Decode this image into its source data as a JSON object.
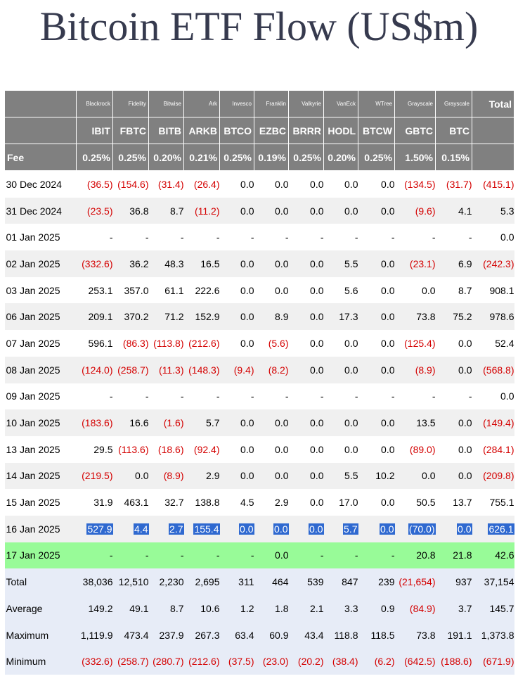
{
  "title": "Bitcoin ETF Flow (US$m)",
  "colors": {
    "header_bg": "#808080",
    "negative": "#d40000",
    "highlight": "#2f69d0",
    "green_row": "#98fb98",
    "summary_bg": "#e7ecf7"
  },
  "issuers": [
    "Blackrock",
    "Fidelity",
    "Bitwise",
    "Ark",
    "Invesco",
    "Franklin",
    "Valkyrie",
    "VanEck",
    "WTree",
    "Grayscale",
    "Grayscale"
  ],
  "total_header": "Total",
  "tickers": [
    "IBIT",
    "FBTC",
    "BITB",
    "ARKB",
    "BTCO",
    "EZBC",
    "BRRR",
    "HODL",
    "BTCW",
    "GBTC",
    "BTC"
  ],
  "fee_label": "Fee",
  "fees": [
    "0.25%",
    "0.25%",
    "0.20%",
    "0.21%",
    "0.25%",
    "0.19%",
    "0.25%",
    "0.20%",
    "0.25%",
    "1.50%",
    "0.15%"
  ],
  "rows": [
    {
      "date": "30 Dec 2024",
      "cells": [
        "(36.5)",
        "(154.6)",
        "(31.4)",
        "(26.4)",
        "0.0",
        "0.0",
        "0.0",
        "0.0",
        "0.0",
        "(134.5)",
        "(31.7)",
        "(415.1)"
      ]
    },
    {
      "date": "31 Dec 2024",
      "cells": [
        "(23.5)",
        "36.8",
        "8.7",
        "(11.2)",
        "0.0",
        "0.0",
        "0.0",
        "0.0",
        "0.0",
        "(9.6)",
        "4.1",
        "5.3"
      ]
    },
    {
      "date": "01 Jan 2025",
      "cells": [
        "-",
        "-",
        "-",
        "-",
        "-",
        "-",
        "-",
        "-",
        "-",
        "-",
        "-",
        "0.0"
      ]
    },
    {
      "date": "02 Jan 2025",
      "cells": [
        "(332.6)",
        "36.2",
        "48.3",
        "16.5",
        "0.0",
        "0.0",
        "0.0",
        "5.5",
        "0.0",
        "(23.1)",
        "6.9",
        "(242.3)"
      ]
    },
    {
      "date": "03 Jan 2025",
      "cells": [
        "253.1",
        "357.0",
        "61.1",
        "222.6",
        "0.0",
        "0.0",
        "0.0",
        "5.6",
        "0.0",
        "0.0",
        "8.7",
        "908.1"
      ]
    },
    {
      "date": "06 Jan 2025",
      "cells": [
        "209.1",
        "370.2",
        "71.2",
        "152.9",
        "0.0",
        "8.9",
        "0.0",
        "17.3",
        "0.0",
        "73.8",
        "75.2",
        "978.6"
      ]
    },
    {
      "date": "07 Jan 2025",
      "cells": [
        "596.1",
        "(86.3)",
        "(113.8)",
        "(212.6)",
        "0.0",
        "(5.6)",
        "0.0",
        "0.0",
        "0.0",
        "(125.4)",
        "0.0",
        "52.4"
      ]
    },
    {
      "date": "08 Jan 2025",
      "cells": [
        "(124.0)",
        "(258.7)",
        "(11.3)",
        "(148.3)",
        "(9.4)",
        "(8.2)",
        "0.0",
        "0.0",
        "0.0",
        "(8.9)",
        "0.0",
        "(568.8)"
      ]
    },
    {
      "date": "09 Jan 2025",
      "cells": [
        "-",
        "-",
        "-",
        "-",
        "-",
        "-",
        "-",
        "-",
        "-",
        "-",
        "-",
        "0.0"
      ]
    },
    {
      "date": "10 Jan 2025",
      "cells": [
        "(183.6)",
        "16.6",
        "(1.6)",
        "5.7",
        "0.0",
        "0.0",
        "0.0",
        "0.0",
        "0.0",
        "13.5",
        "0.0",
        "(149.4)"
      ]
    },
    {
      "date": "13 Jan 2025",
      "cells": [
        "29.5",
        "(113.6)",
        "(18.6)",
        "(92.4)",
        "0.0",
        "0.0",
        "0.0",
        "0.0",
        "0.0",
        "(89.0)",
        "0.0",
        "(284.1)"
      ]
    },
    {
      "date": "14 Jan 2025",
      "cells": [
        "(219.5)",
        "0.0",
        "(8.9)",
        "2.9",
        "0.0",
        "0.0",
        "0.0",
        "5.5",
        "10.2",
        "0.0",
        "0.0",
        "(209.8)"
      ]
    },
    {
      "date": "15 Jan 2025",
      "cells": [
        "31.9",
        "463.1",
        "32.7",
        "138.8",
        "4.5",
        "2.9",
        "0.0",
        "17.0",
        "0.0",
        "50.5",
        "13.7",
        "755.1"
      ]
    },
    {
      "date": "16 Jan 2025",
      "cells": [
        "527.9",
        "4.4",
        "2.7",
        "155.4",
        "0.0",
        "0.0",
        "0.0",
        "5.7",
        "0.0",
        "(70.0)",
        "0.0",
        "626.1"
      ],
      "selected": true
    },
    {
      "date": "17 Jan 2025",
      "cells": [
        "-",
        "-",
        "-",
        "-",
        "-",
        "0.0",
        "-",
        "-",
        "-",
        "20.8",
        "21.8",
        "42.6"
      ],
      "pending": true
    }
  ],
  "summary": [
    {
      "label": "Total",
      "cells": [
        "38,036",
        "12,510",
        "2,230",
        "2,695",
        "311",
        "464",
        "539",
        "847",
        "239",
        "(21,654)",
        "937",
        "37,154"
      ]
    },
    {
      "label": "Average",
      "cells": [
        "149.2",
        "49.1",
        "8.7",
        "10.6",
        "1.2",
        "1.8",
        "2.1",
        "3.3",
        "0.9",
        "(84.9)",
        "3.7",
        "145.7"
      ]
    },
    {
      "label": "Maximum",
      "cells": [
        "1,119.9",
        "473.4",
        "237.9",
        "267.3",
        "63.4",
        "60.9",
        "43.4",
        "118.8",
        "118.5",
        "73.8",
        "191.1",
        "1,373.8"
      ]
    },
    {
      "label": "Minimum",
      "cells": [
        "(332.6)",
        "(258.7)",
        "(280.7)",
        "(212.6)",
        "(37.5)",
        "(23.0)",
        "(20.2)",
        "(38.4)",
        "(6.2)",
        "(642.5)",
        "(188.6)",
        "(671.9)"
      ]
    }
  ]
}
